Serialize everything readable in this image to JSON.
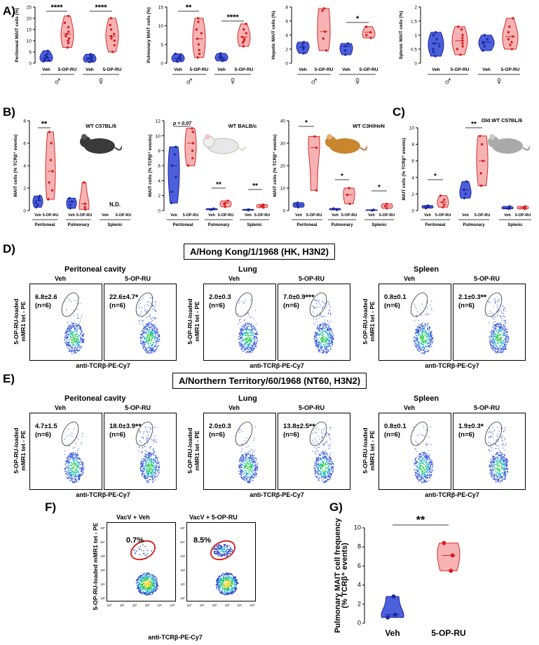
{
  "panel_labels": {
    "A": "A)",
    "B": "B)",
    "C": "C)",
    "D": "D)",
    "E": "E)",
    "F": "F)",
    "G": "G)"
  },
  "colors": {
    "veh_fill": "#3a4fd8",
    "veh_stroke": "#1a1f9c",
    "ru_fill": "#f6a6a6",
    "ru_stroke": "#d62a2a",
    "dot_veh": "#1a2aa0",
    "dot_ru": "#d61f1f"
  },
  "chart_data": [
    {
      "id": "A1",
      "type": "violin",
      "ylabel": "Peritoneal MAIT cells (%)",
      "ylim": [
        0,
        25
      ],
      "yticks": [
        0,
        5,
        10,
        15,
        20,
        25
      ],
      "groups": [
        {
          "name": "Veh",
          "sex": "male",
          "values": [
            0.8,
            1.2,
            1.6,
            2,
            2.4,
            3,
            3.5,
            4.2,
            5.5
          ]
        },
        {
          "name": "5-OP-RU",
          "sex": "male",
          "values": [
            7,
            9,
            10,
            11,
            12,
            13,
            14,
            16,
            18,
            21
          ]
        },
        {
          "name": "Veh",
          "sex": "female",
          "values": [
            0.5,
            0.9,
            1.3,
            1.8,
            2.2,
            2.8,
            3.4,
            4
          ]
        },
        {
          "name": "5-OP-RU",
          "sex": "female",
          "values": [
            5,
            8,
            10,
            11,
            12,
            13,
            15,
            17,
            20
          ]
        }
      ],
      "significance": [
        {
          "pair": [
            0,
            1
          ],
          "label": "****"
        },
        {
          "pair": [
            2,
            3
          ],
          "label": "****"
        }
      ],
      "sex_labels": [
        "♂",
        "♀"
      ]
    },
    {
      "id": "A2",
      "type": "violin",
      "ylabel": "Pulmonary MAIT cells (%)",
      "ylim": [
        0,
        15
      ],
      "yticks": [
        0,
        5,
        10,
        15
      ],
      "groups": [
        {
          "name": "Veh",
          "sex": "male",
          "values": [
            0.4,
            0.7,
            1,
            1.3,
            1.6,
            2,
            2.5
          ]
        },
        {
          "name": "5-OP-RU",
          "sex": "male",
          "values": [
            1.5,
            2.5,
            3.5,
            5,
            6.5,
            8,
            9,
            11,
            12
          ]
        },
        {
          "name": "Veh",
          "sex": "female",
          "values": [
            0.6,
            0.9,
            1.2,
            1.5,
            1.8,
            2.2,
            2.6
          ]
        },
        {
          "name": "5-OP-RU",
          "sex": "female",
          "values": [
            4.5,
            5.5,
            6,
            6.5,
            7,
            8,
            9,
            10.5
          ]
        }
      ],
      "significance": [
        {
          "pair": [
            0,
            1
          ],
          "label": "**"
        },
        {
          "pair": [
            2,
            3
          ],
          "label": "****"
        }
      ],
      "sex_labels": [
        "♂",
        "♀"
      ]
    },
    {
      "id": "A3",
      "type": "violin",
      "ylabel": "Hepatic MAIT cells (%)",
      "ylim": [
        0,
        8
      ],
      "yticks": [
        0,
        2,
        4,
        6,
        8
      ],
      "groups": [
        {
          "name": "Veh",
          "sex": "male",
          "values": [
            1.4,
            2,
            2.3,
            2.7,
            3
          ]
        },
        {
          "name": "5-OP-RU",
          "sex": "male",
          "values": [
            1.8,
            3.5,
            4.5,
            7.5,
            7.8
          ]
        },
        {
          "name": "Veh",
          "sex": "female",
          "values": [
            1.2,
            1.8,
            2.4,
            2.8
          ]
        },
        {
          "name": "5-OP-RU",
          "sex": "female",
          "values": [
            3.6,
            4,
            4.4,
            5.2
          ]
        }
      ],
      "significance": [
        {
          "pair": [
            2,
            3
          ],
          "label": "*"
        }
      ],
      "sex_labels": [
        "♂",
        "♀"
      ]
    },
    {
      "id": "A4",
      "type": "violin",
      "ylabel": "Splenic MAIT cells (%)",
      "ylim": [
        0,
        2.0
      ],
      "yticks": [
        0,
        0.5,
        1.0,
        1.5,
        2.0
      ],
      "groups": [
        {
          "name": "Veh",
          "sex": "male",
          "values": [
            0.25,
            0.4,
            0.5,
            0.6,
            0.7,
            0.85,
            1.0,
            1.1
          ]
        },
        {
          "name": "5-OP-RU",
          "sex": "male",
          "values": [
            0.3,
            0.5,
            0.6,
            0.7,
            0.8,
            0.9,
            1.0,
            1.2,
            1.3
          ]
        },
        {
          "name": "Veh",
          "sex": "female",
          "values": [
            0.45,
            0.6,
            0.7,
            0.75,
            0.85,
            1.0
          ]
        },
        {
          "name": "5-OP-RU",
          "sex": "female",
          "values": [
            0.5,
            0.65,
            0.75,
            0.85,
            0.95,
            1.1,
            1.3,
            1.6
          ]
        }
      ],
      "significance": [],
      "sex_labels": [
        "♂",
        "♀"
      ]
    },
    {
      "id": "B1",
      "type": "violin",
      "title": "WT C57BL/6",
      "ylabel": "MAIT cells (% TCRβ⁺ events)",
      "ylim": [
        0,
        8
      ],
      "yticks": [
        0,
        2,
        4,
        6,
        8
      ],
      "groups": [
        {
          "name": "Veh",
          "tissue": "Peritoneal",
          "values": [
            0.3,
            0.5,
            0.7,
            0.9,
            1.1,
            1.3
          ]
        },
        {
          "name": "5-OP-RU",
          "tissue": "Peritoneal",
          "values": [
            1,
            1.8,
            2.5,
            3.5,
            4.5,
            6,
            7
          ]
        },
        {
          "name": "Veh",
          "tissue": "Pulmonary",
          "values": [
            0.2,
            0.5,
            0.8,
            1.1
          ]
        },
        {
          "name": "5-OP-RU",
          "tissue": "Pulmonary",
          "values": [
            0.1,
            0.3,
            0.6,
            2.5
          ]
        }
      ],
      "nd": "N.D.",
      "tissues": [
        "Peritoneal",
        "Pulmonary",
        "Splenic"
      ],
      "significance": [
        {
          "pair": [
            0,
            1
          ],
          "label": "**"
        }
      ]
    },
    {
      "id": "B2",
      "type": "violin",
      "title": "WT BALB/c",
      "ylabel": "MAIT cells (% TCRβ⁺ events)",
      "ylim": [
        0,
        12
      ],
      "yticks": [
        0,
        2,
        4,
        6,
        8,
        10,
        12
      ],
      "groups": [
        {
          "name": "Veh",
          "tissue": "Peritoneal",
          "values": [
            1,
            2.5,
            4.5,
            6,
            7.5,
            8.5
          ]
        },
        {
          "name": "5-OP-RU",
          "tissue": "Peritoneal",
          "values": [
            6,
            7,
            8,
            9,
            10.5,
            11
          ]
        },
        {
          "name": "Veh",
          "tissue": "Pulmonary",
          "values": [
            0.1,
            0.15,
            0.2,
            0.25
          ]
        },
        {
          "name": "5-OP-RU",
          "tissue": "Pulmonary",
          "values": [
            0.5,
            0.8,
            1,
            1.3
          ]
        },
        {
          "name": "Veh",
          "tissue": "Splenic",
          "values": [
            0.05,
            0.1,
            0.15
          ]
        },
        {
          "name": "5-OP-RU",
          "tissue": "Splenic",
          "values": [
            0.4,
            0.6,
            0.8
          ]
        }
      ],
      "tissues": [
        "Peritoneal",
        "Pulmonary",
        "Splenic"
      ],
      "significance": [
        {
          "pair": [
            0,
            1
          ],
          "label": "p = 0.07"
        },
        {
          "pair": [
            2,
            3
          ],
          "label": "**"
        },
        {
          "pair": [
            4,
            5
          ],
          "label": "**"
        }
      ]
    },
    {
      "id": "B3",
      "type": "violin",
      "title": "WT C3H/HeN",
      "ylabel": "MAIT cells (% TCRβ⁺ events)",
      "ylim": [
        0,
        40
      ],
      "yticks": [
        0,
        10,
        20,
        30,
        40
      ],
      "groups": [
        {
          "name": "Veh",
          "tissue": "Peritoneal",
          "values": [
            1.5,
            2.5,
            3.5
          ]
        },
        {
          "name": "5-OP-RU",
          "tissue": "Peritoneal",
          "values": [
            9,
            28,
            33
          ]
        },
        {
          "name": "Veh",
          "tissue": "Pulmonary",
          "values": [
            0.3,
            0.6,
            0.9
          ]
        },
        {
          "name": "5-OP-RU",
          "tissue": "Pulmonary",
          "values": [
            3,
            7,
            10
          ]
        },
        {
          "name": "Veh",
          "tissue": "Splenic",
          "values": [
            0.1,
            0.2,
            0.3
          ]
        },
        {
          "name": "5-OP-RU",
          "tissue": "Splenic",
          "values": [
            1,
            2,
            3
          ]
        }
      ],
      "tissues": [
        "Peritoneal",
        "Pulmonary",
        "Splenic"
      ],
      "significance": [
        {
          "pair": [
            0,
            1
          ],
          "label": "*"
        },
        {
          "pair": [
            2,
            3
          ],
          "label": "*"
        },
        {
          "pair": [
            4,
            5
          ],
          "label": "*"
        }
      ]
    },
    {
      "id": "C1",
      "type": "violin",
      "title": "Old WT C57BL/6",
      "ylabel": "MAIT cells (% TCRβ⁺ events)",
      "ylim": [
        0,
        10
      ],
      "yticks": [
        0,
        2,
        4,
        6,
        8,
        10
      ],
      "groups": [
        {
          "name": "Veh",
          "tissue": "Peritoneal",
          "values": [
            0.3,
            0.4,
            0.5,
            0.6
          ]
        },
        {
          "name": "5-OP-RU",
          "tissue": "Peritoneal",
          "values": [
            0.4,
            0.7,
            1,
            1.3,
            1.8
          ]
        },
        {
          "name": "Veh",
          "tissue": "Pulmonary",
          "values": [
            1.5,
            2,
            2.5,
            3.5
          ]
        },
        {
          "name": "5-OP-RU",
          "tissue": "Pulmonary",
          "values": [
            3,
            4.5,
            6,
            8,
            9
          ]
        },
        {
          "name": "Veh",
          "tissue": "Splenic",
          "values": [
            0.2,
            0.3,
            0.5
          ]
        },
        {
          "name": "5-OP-RU",
          "tissue": "Splenic",
          "values": [
            0.2,
            0.35,
            0.5
          ]
        }
      ],
      "tissues": [
        "Peritoneal",
        "Pulmonary",
        "Splenic"
      ],
      "significance": [
        {
          "pair": [
            0,
            1
          ],
          "label": "*"
        },
        {
          "pair": [
            2,
            3
          ],
          "label": "**"
        }
      ]
    },
    {
      "id": "G",
      "type": "violin",
      "ylabel": "Pulmonary MAIT cell frequency (% TCRβ⁺ events)",
      "ylim": [
        0,
        10
      ],
      "yticks": [
        0,
        2,
        4,
        6,
        8,
        10
      ],
      "groups": [
        {
          "name": "Veh",
          "values": [
            0.6,
            0.9,
            2.8
          ]
        },
        {
          "name": "5-OP-RU",
          "values": [
            5.5,
            7.1,
            8.4
          ]
        }
      ],
      "significance": [
        {
          "pair": [
            0,
            1
          ],
          "label": "**"
        }
      ]
    }
  ],
  "sectionD": {
    "header": "A/Hong Kong/1/1968 (HK, H3N2)",
    "panels": [
      {
        "title": "Peritoneal cavity",
        "veh": {
          "val": "6.8±2.6",
          "n": "(n=6)"
        },
        "ru": {
          "val": "22.6±4.7",
          "sig": "*",
          "n": "(n=6)"
        }
      },
      {
        "title": "Lung",
        "veh": {
          "val": "2.0±0.3",
          "n": "(n=6)"
        },
        "ru": {
          "val": "7.0±0.9",
          "sig": "***",
          "n": "(n=6)"
        }
      },
      {
        "title": "Spleen",
        "veh": {
          "val": "0.8±0.1",
          "n": "(n=6)"
        },
        "ru": {
          "val": "2.1±0.3",
          "sig": "**",
          "n": "(n=6)"
        }
      }
    ]
  },
  "sectionE": {
    "header": "A/Northern Territory/60/1968 (NT60, H3N2)",
    "panels": [
      {
        "title": "Peritoneal cavity",
        "veh": {
          "val": "4.7±1.5",
          "n": "(n=6)"
        },
        "ru": {
          "val": "18.0±3.9",
          "sig": "**",
          "n": "(n=6)"
        }
      },
      {
        "title": "Lung",
        "veh": {
          "val": "2.0±0.3",
          "n": "(n=6)"
        },
        "ru": {
          "val": "13.8±2.5",
          "sig": "**",
          "n": "(n=6)"
        }
      },
      {
        "title": "Spleen",
        "veh": {
          "val": "0.8±0.1",
          "n": "(n=6)"
        },
        "ru": {
          "val": "1.9±0.3",
          "sig": "*",
          "n": "(n=6)"
        }
      }
    ]
  },
  "flow_labels": {
    "veh": "Veh",
    "ru": "5-OP-RU",
    "ylabel_1": "5-OP-RU-loaded",
    "ylabel_2": "mMR1 tet - PE",
    "xlabel": "anti-TCRβ-PE-Cy7"
  },
  "sectionF": {
    "veh_title": "VacV + Veh",
    "ru_title": "VacV + 5-OP-RU",
    "veh_pct": "0.7%",
    "ru_pct": "8.5%",
    "ylabel": "5-OP-RU-loaded mMR1 tet - PE",
    "xlabel": "anti-TCRβ-PE-Cy7",
    "ticks": [
      "10⁰",
      "10¹",
      "10²",
      "10³",
      "10⁴",
      "10⁵"
    ]
  },
  "tick_names": {
    "veh": "Veh",
    "ru": "5-OP-RU"
  }
}
